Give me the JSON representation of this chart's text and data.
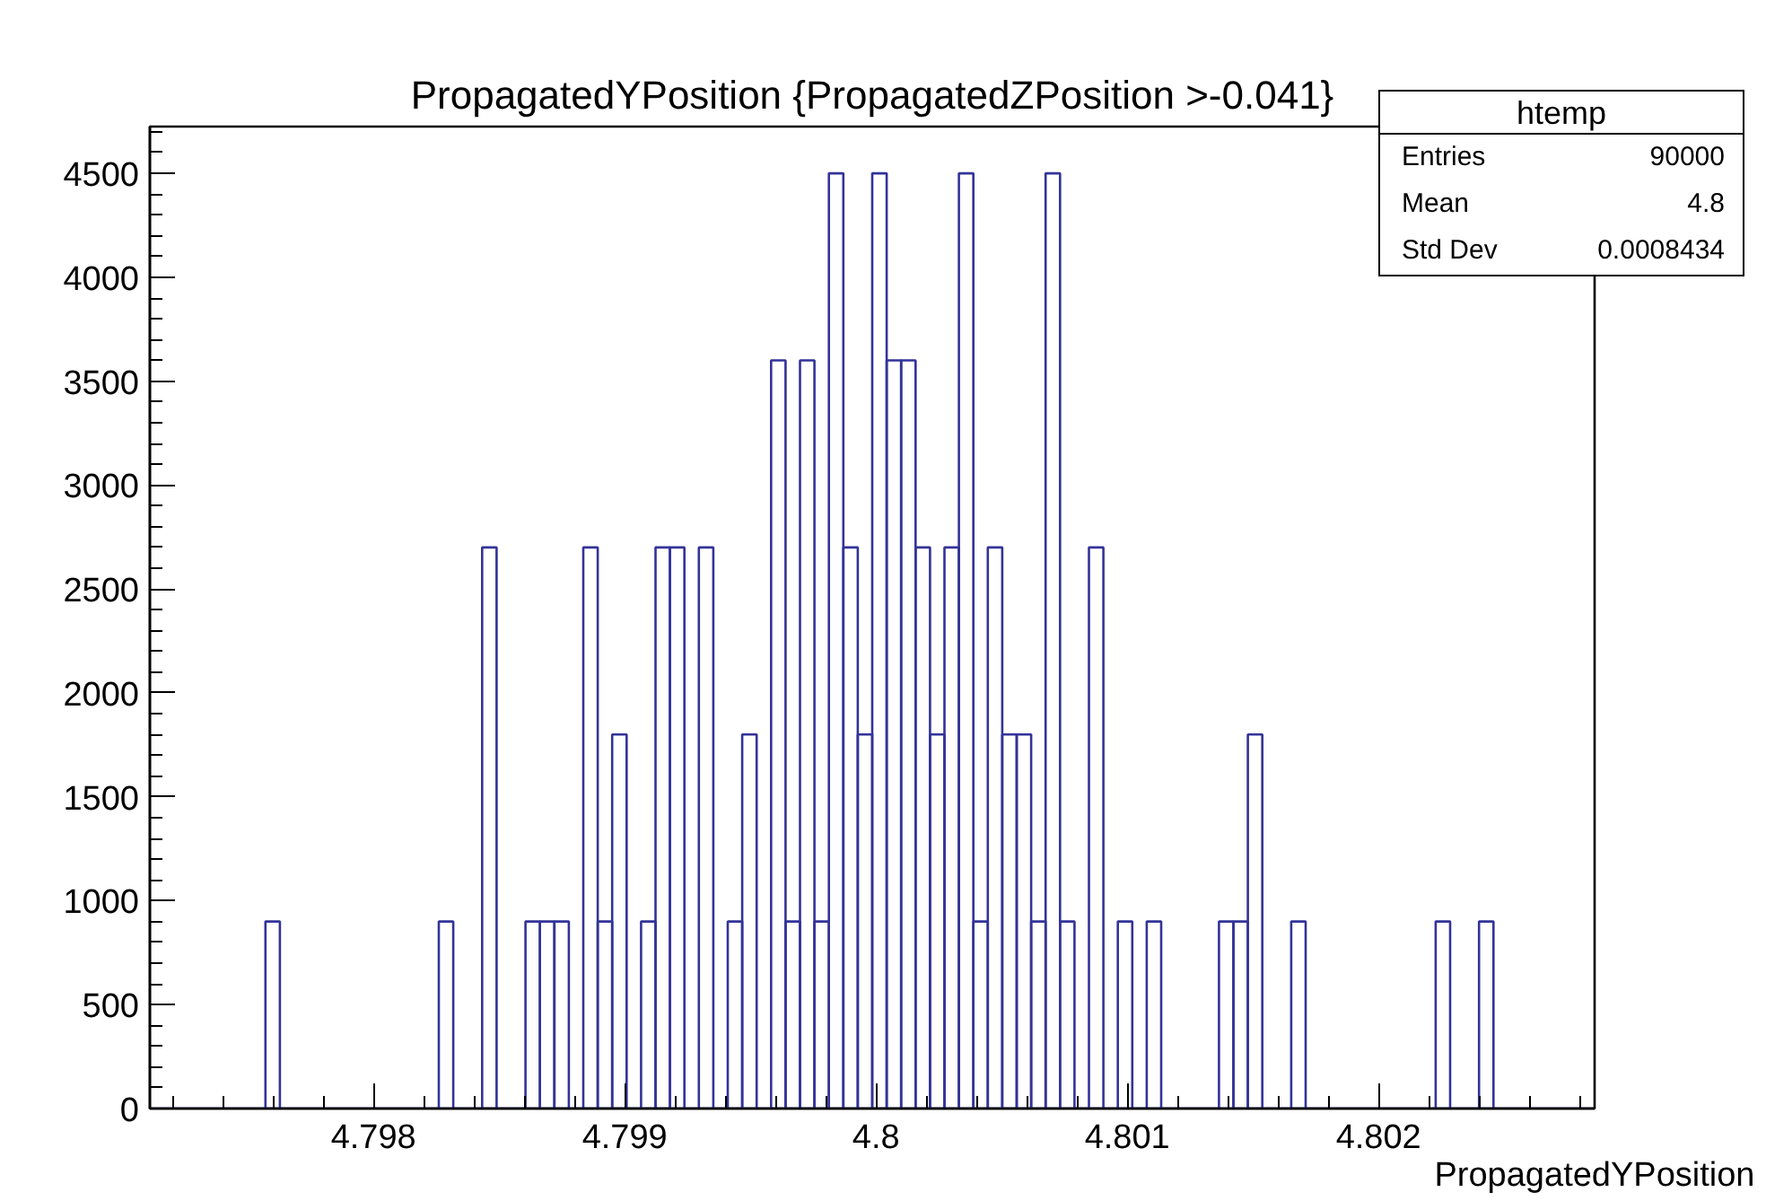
{
  "chart_data": {
    "type": "histogram",
    "title": "PropagatedYPosition {PropagatedZPosition >-0.041}",
    "xlabel": "PropagatedYPosition",
    "bins": [
      4.79711,
      4.7971675,
      4.797225,
      4.7972825,
      4.79734,
      4.7973975,
      4.797455,
      4.7975125,
      4.79757,
      4.7976275,
      4.797685,
      4.7977425,
      4.7978,
      4.7978575,
      4.797915,
      4.7979725,
      4.79803,
      4.7980875,
      4.798145,
      4.7982025,
      4.79826,
      4.7983175,
      4.798375,
      4.7984325,
      4.79849,
      4.7985475,
      4.798605,
      4.7986625,
      4.79872,
      4.7987775,
      4.798835,
      4.7988925,
      4.79895,
      4.7990075,
      4.799065,
      4.7991225,
      4.79918,
      4.7992375,
      4.799295,
      4.7993525,
      4.79941,
      4.7994675,
      4.799525,
      4.7995825,
      4.79964,
      4.7996975,
      4.799755,
      4.7998125,
      4.79987,
      4.7999275,
      4.799985,
      4.8000425,
      4.8001,
      4.8001575,
      4.800215,
      4.8002725,
      4.80033,
      4.8003875,
      4.800445,
      4.8005025,
      4.80056,
      4.8006175,
      4.800675,
      4.8007325,
      4.80079,
      4.8008475,
      4.800905,
      4.8009625,
      4.80102,
      4.8010775,
      4.801135,
      4.8011925,
      4.80125,
      4.8013075,
      4.801365,
      4.8014225,
      4.80148,
      4.8015375,
      4.801595,
      4.8016525,
      4.80171,
      4.8017675,
      4.801825,
      4.8018825,
      4.80194,
      4.8019975,
      4.802055,
      4.8021125,
      4.80217,
      4.8022275,
      4.802285,
      4.8023425,
      4.8024,
      4.8024575,
      4.802515,
      4.8025725,
      4.80263,
      4.8026875,
      4.802745,
      4.8028025,
      4.80286
    ],
    "values": [
      0,
      0,
      0,
      0,
      0,
      0,
      0,
      0,
      900,
      0,
      0,
      0,
      0,
      0,
      0,
      0,
      0,
      0,
      0,
      0,
      900,
      0,
      0,
      2700,
      0,
      0,
      900,
      900,
      900,
      0,
      2700,
      900,
      1800,
      0,
      900,
      2700,
      2700,
      0,
      2700,
      0,
      900,
      1800,
      0,
      3600,
      900,
      3600,
      900,
      4500,
      2700,
      1800,
      4500,
      3600,
      3600,
      2700,
      1800,
      2700,
      4500,
      900,
      2700,
      1800,
      1800,
      900,
      4500,
      900,
      0,
      2700,
      0,
      900,
      0,
      900,
      0,
      0,
      0,
      0,
      900,
      900,
      1800,
      0,
      0,
      900,
      0,
      0,
      0,
      0,
      0,
      0,
      0,
      0,
      0,
      900,
      0,
      0,
      900,
      0,
      0,
      0,
      0,
      0,
      0,
      0
    ],
    "color": "#333399",
    "xlim": [
      4.79711,
      4.80286
    ],
    "ylim": [
      0,
      4725
    ],
    "xticks": [
      {
        "value": 4.7972,
        "label": null
      },
      {
        "value": 4.7974,
        "label": null
      },
      {
        "value": 4.7976,
        "label": null
      },
      {
        "value": 4.7978,
        "label": null
      },
      4.798,
      {
        "value": 4.7982,
        "label": null
      },
      {
        "value": 4.7984,
        "label": null
      },
      {
        "value": 4.7986,
        "label": null
      },
      {
        "value": 4.7988,
        "label": null
      },
      4.799,
      {
        "value": 4.7992,
        "label": null
      },
      {
        "value": 4.7994,
        "label": null
      },
      {
        "value": 4.7996,
        "label": null
      },
      {
        "value": 4.7998,
        "label": null
      },
      {
        "value": 4.8,
        "label": "4.8"
      },
      {
        "value": 4.8002,
        "label": null
      },
      {
        "value": 4.8004,
        "label": null
      },
      {
        "value": 4.8006,
        "label": null
      },
      {
        "value": 4.8008,
        "label": null
      },
      4.801,
      {
        "value": 4.8012,
        "label": null
      },
      {
        "value": 4.8014,
        "label": null
      },
      {
        "value": 4.8016,
        "label": null
      },
      {
        "value": 4.8018,
        "label": null
      },
      4.802,
      {
        "value": 4.8022,
        "label": null
      },
      {
        "value": 4.8024,
        "label": null
      },
      {
        "value": 4.8026,
        "label": null
      },
      {
        "value": 4.8028,
        "label": null
      }
    ],
    "yticks": [
      0,
      {
        "value": 100,
        "label": null
      },
      {
        "value": 200,
        "label": null
      },
      {
        "value": 300,
        "label": null
      },
      {
        "value": 400,
        "label": null
      },
      500,
      {
        "value": 600,
        "label": null
      },
      {
        "value": 700,
        "label": null
      },
      {
        "value": 800,
        "label": null
      },
      {
        "value": 900,
        "label": null
      },
      1000,
      {
        "value": 1100,
        "label": null
      },
      {
        "value": 1200,
        "label": null
      },
      {
        "value": 1300,
        "label": null
      },
      {
        "value": 1400,
        "label": null
      },
      1500,
      {
        "value": 1600,
        "label": null
      },
      {
        "value": 1700,
        "label": null
      },
      {
        "value": 1800,
        "label": null
      },
      {
        "value": 1900,
        "label": null
      },
      2000,
      {
        "value": 2100,
        "label": null
      },
      {
        "value": 2200,
        "label": null
      },
      {
        "value": 2300,
        "label": null
      },
      {
        "value": 2400,
        "label": null
      },
      2500,
      {
        "value": 2600,
        "label": null
      },
      {
        "value": 2700,
        "label": null
      },
      {
        "value": 2800,
        "label": null
      },
      {
        "value": 2900,
        "label": null
      },
      3000,
      {
        "value": 3100,
        "label": null
      },
      {
        "value": 3200,
        "label": null
      },
      {
        "value": 3300,
        "label": null
      },
      {
        "value": 3400,
        "label": null
      },
      3500,
      {
        "value": 3600,
        "label": null
      },
      {
        "value": 3700,
        "label": null
      },
      {
        "value": 3800,
        "label": null
      },
      {
        "value": 3900,
        "label": null
      },
      4000,
      {
        "value": 4100,
        "label": null
      },
      {
        "value": 4200,
        "label": null
      },
      {
        "value": 4300,
        "label": null
      },
      {
        "value": 4400,
        "label": null
      },
      4500,
      {
        "value": 4600,
        "label": null
      },
      {
        "value": 4700,
        "label": null
      }
    ],
    "grid": false,
    "annotations": [
      "htemp",
      "Entries",
      "90000",
      "Mean",
      "4.8",
      "Std Dev",
      "0.0008434"
    ]
  }
}
